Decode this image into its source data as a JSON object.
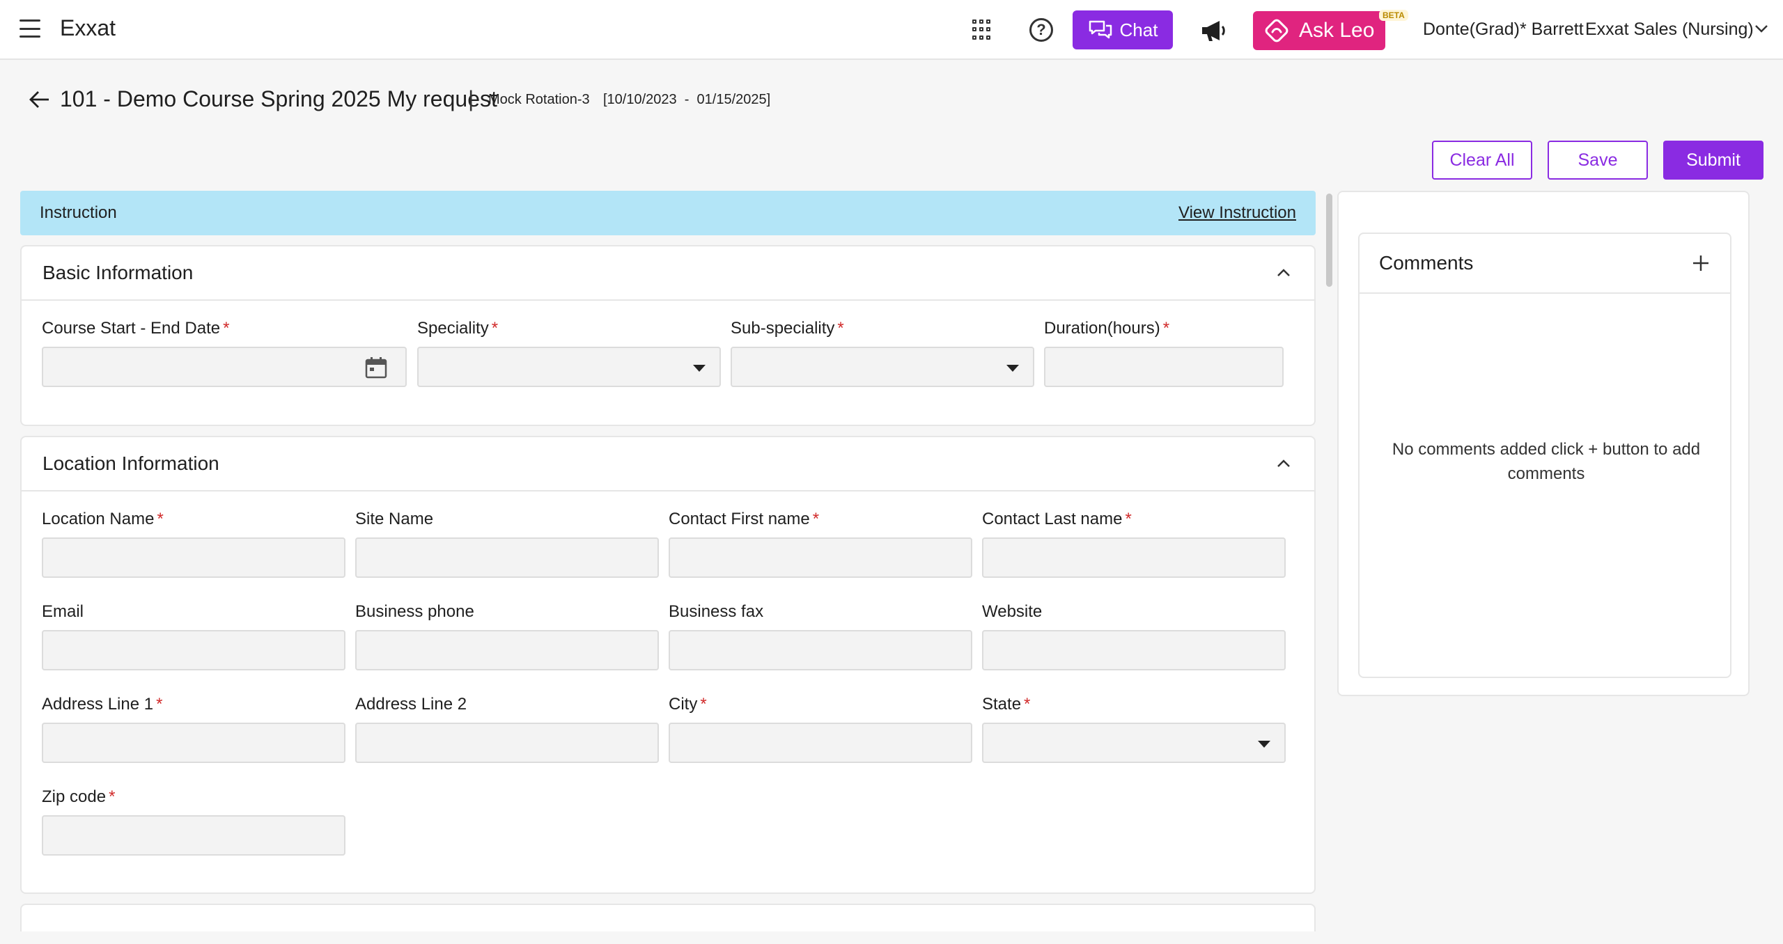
{
  "header": {
    "brand": "Exxat",
    "chat_label": "Chat",
    "leo_label": "Ask Leo",
    "beta_badge": "BETA",
    "user_name": "Donte(Grad)* Barrett",
    "org_name": "Exxat Sales (Nursing)"
  },
  "page": {
    "title": "101 - Demo Course Spring 2025 My request",
    "separator": "|",
    "rotation": "Mock Rotation-3",
    "dates": "[10/10/2023  -  01/15/2025]"
  },
  "actions": {
    "clear_all": "Clear All",
    "save": "Save",
    "submit": "Submit"
  },
  "instruction": {
    "label": "Instruction",
    "link": "View Instruction"
  },
  "basic_info": {
    "title": "Basic Information",
    "fields": {
      "course_dates": "Course Start - End Date",
      "speciality": "Speciality",
      "sub_speciality": "Sub-speciality",
      "duration": "Duration(hours)"
    }
  },
  "location_info": {
    "title": "Location Information",
    "fields": {
      "location_name": "Location Name",
      "site_name": "Site Name",
      "contact_first": "Contact First name",
      "contact_last": "Contact Last name",
      "email": "Email",
      "business_phone": "Business phone",
      "business_fax": "Business fax",
      "website": "Website",
      "address1": "Address Line 1",
      "address2": "Address Line 2",
      "city": "City",
      "state": "State",
      "zip": "Zip code"
    }
  },
  "required_mark": "*",
  "comments": {
    "title": "Comments",
    "empty_text": "No comments added click + button to add comments"
  },
  "colors": {
    "primary": "#8a2be2",
    "leo": "#e0247f",
    "instruction_bg": "#b3e5f7",
    "required": "#d12b2b"
  }
}
